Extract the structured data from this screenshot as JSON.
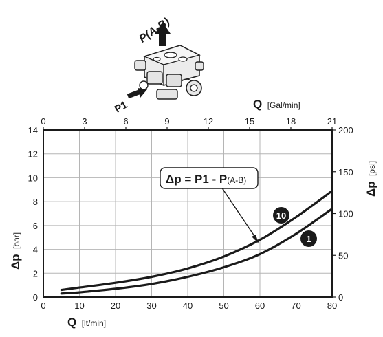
{
  "chart_data": {
    "type": "line",
    "x": [
      5,
      10,
      20,
      30,
      40,
      50,
      60,
      70,
      80
    ],
    "series": [
      {
        "name": "10",
        "values": [
          0.6,
          0.8,
          1.2,
          1.7,
          2.4,
          3.4,
          4.8,
          6.7,
          8.9
        ]
      },
      {
        "name": "1",
        "values": [
          0.3,
          0.4,
          0.7,
          1.1,
          1.7,
          2.5,
          3.6,
          5.3,
          7.4
        ]
      }
    ],
    "xlim": [
      0,
      80
    ],
    "ylim": [
      0,
      14
    ],
    "xticks": [
      0,
      10,
      20,
      30,
      40,
      50,
      60,
      70,
      80
    ],
    "yticks": [
      0,
      2,
      4,
      6,
      8,
      10,
      12,
      14
    ],
    "xlabel_symbol": "Q",
    "xlabel_unit": "[lt/min]",
    "ylabel_symbol": "Δp",
    "ylabel_unit": "[bar]",
    "secondary_x": {
      "symbol": "Q",
      "unit": "[Gal/min]",
      "ticks": [
        0,
        3,
        6,
        9,
        12,
        15,
        18,
        21
      ],
      "range": [
        0,
        21
      ]
    },
    "secondary_y": {
      "symbol": "Δp",
      "unit": "[psi]",
      "ticks": [
        0,
        50,
        100,
        150,
        200
      ],
      "range": [
        0,
        200
      ]
    },
    "annotation": {
      "main": "Δp = P1 - P",
      "sub": "(A-B)"
    },
    "grid": true,
    "badges": [
      "10",
      "1"
    ]
  },
  "diagram": {
    "outlet_label": "P(A-B)",
    "inlet_label": "P1"
  }
}
